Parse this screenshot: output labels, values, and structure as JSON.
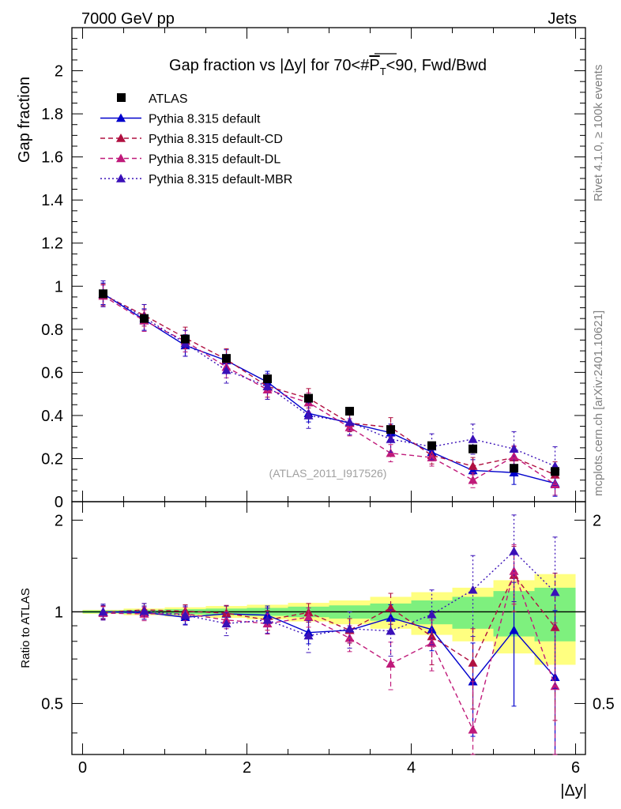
{
  "header": {
    "left": "7000 GeV pp",
    "right": "Jets"
  },
  "side_labels": {
    "rivet": "Rivet 4.1.0, ≥ 100k events",
    "mcplots": "mcplots.cern.ch [arXiv:2401.10621]"
  },
  "chart_data": [
    {
      "type": "scatter",
      "panel": "main",
      "title": "Gap fraction vs |Δy| for 70<#P̅T<90, Fwd/Bwd",
      "title_parts": {
        "pre": "Gap fraction vs |Δy| for 70<#",
        "P": "P",
        "T": "T",
        "post": "<90, Fwd/Bwd"
      },
      "ylabel": "Gap fraction",
      "xlim": [
        -0.13,
        6.12
      ],
      "ylim": [
        0,
        2.2
      ],
      "yticks": [
        0,
        0.2,
        0.4,
        0.6,
        0.8,
        1,
        1.2,
        1.4,
        1.6,
        1.8,
        2
      ],
      "ytick_labels": [
        "0",
        "0.2",
        "0.4",
        "0.6",
        "0.8",
        "1",
        "1.2",
        "1.4",
        "1.6",
        "1.8",
        "2"
      ],
      "watermark": "(ATLAS_2011_I917526)",
      "x": [
        0.25,
        0.75,
        1.25,
        1.75,
        2.25,
        2.75,
        3.25,
        3.75,
        4.25,
        4.75,
        5.25,
        5.75
      ],
      "series": [
        {
          "name": "ATLAS",
          "color": "#000000",
          "marker": "square",
          "line": "none",
          "values": [
            0.965,
            0.85,
            0.755,
            0.665,
            0.57,
            0.48,
            0.42,
            0.335,
            0.26,
            0.245,
            0.155,
            0.14
          ],
          "errors": [
            0.01,
            0.01,
            0.01,
            0.01,
            0.01,
            0.01,
            0.01,
            0.01,
            0.01,
            0.01,
            0.01,
            0.01
          ]
        },
        {
          "name": "Pythia 8.315 default",
          "color": "#0000cc",
          "marker": "triangle",
          "line": "solid",
          "values": [
            0.965,
            0.845,
            0.725,
            0.655,
            0.555,
            0.41,
            0.365,
            0.32,
            0.23,
            0.145,
            0.135,
            0.085
          ],
          "errors": [
            0.05,
            0.05,
            0.05,
            0.05,
            0.05,
            0.04,
            0.04,
            0.04,
            0.04,
            0.05,
            0.055,
            0.06
          ]
        },
        {
          "name": "Pythia 8.315 default-CD",
          "color": "#b01040",
          "marker": "triangle",
          "line": "dashed",
          "values": [
            0.96,
            0.865,
            0.76,
            0.66,
            0.535,
            0.48,
            0.365,
            0.345,
            0.215,
            0.165,
            0.205,
            0.125
          ],
          "errors": [
            0.05,
            0.05,
            0.05,
            0.05,
            0.05,
            0.045,
            0.04,
            0.045,
            0.04,
            0.04,
            0.05,
            0.06
          ]
        },
        {
          "name": "Pythia 8.315 default-DL",
          "color": "#c01a7a",
          "marker": "triangle",
          "line": "dashed",
          "values": [
            0.955,
            0.84,
            0.745,
            0.625,
            0.52,
            0.46,
            0.345,
            0.225,
            0.205,
            0.1,
            0.21,
            0.08
          ],
          "errors": [
            0.05,
            0.05,
            0.05,
            0.05,
            0.045,
            0.045,
            0.04,
            0.04,
            0.04,
            0.035,
            0.05,
            0.05
          ]
        },
        {
          "name": "Pythia 8.315 default-MBR",
          "color": "#3a10b8",
          "marker": "triangle",
          "line": "dotted",
          "values": [
            0.965,
            0.855,
            0.735,
            0.61,
            0.535,
            0.4,
            0.37,
            0.29,
            0.255,
            0.29,
            0.245,
            0.165
          ],
          "errors": [
            0.06,
            0.06,
            0.06,
            0.06,
            0.06,
            0.06,
            0.06,
            0.06,
            0.06,
            0.07,
            0.08,
            0.09
          ]
        }
      ]
    },
    {
      "type": "scatter",
      "panel": "ratio",
      "ylabel": "Ratio to ATLAS",
      "xlabel": "|Δy|",
      "xlim": [
        -0.13,
        6.12
      ],
      "ylim": [
        0.34,
        2.3
      ],
      "xticks": [
        0,
        2,
        4,
        6
      ],
      "xtick_labels": [
        "0",
        "2",
        "4",
        "6"
      ],
      "yticks": [
        0.5,
        1,
        2
      ],
      "ytick_labels": [
        "0.5",
        "1",
        "2"
      ],
      "bin_edges": [
        0,
        0.5,
        1,
        1.5,
        2,
        2.5,
        3,
        3.5,
        4,
        4.5,
        5,
        5.5,
        6
      ],
      "band_green_halfwidth": [
        0.01,
        0.015,
        0.02,
        0.025,
        0.03,
        0.04,
        0.05,
        0.065,
        0.09,
        0.12,
        0.17,
        0.2
      ],
      "band_yellow_halfwidth": [
        0.015,
        0.025,
        0.035,
        0.045,
        0.055,
        0.07,
        0.09,
        0.12,
        0.16,
        0.2,
        0.27,
        0.33
      ],
      "band_colors": {
        "green": "#7ef07e",
        "yellow": "#ffff80"
      },
      "x": [
        0.25,
        0.75,
        1.25,
        1.75,
        2.25,
        2.75,
        3.25,
        3.75,
        4.25,
        4.75,
        5.25,
        5.75
      ],
      "series": [
        {
          "name": "Pythia 8.315 default",
          "color": "#0000cc",
          "line": "solid",
          "values": [
            1.0,
            0.995,
            0.96,
            0.985,
            0.975,
            0.855,
            0.87,
            0.955,
            0.875,
            0.59,
            0.87,
            0.61
          ],
          "errors": [
            0.05,
            0.05,
            0.05,
            0.06,
            0.07,
            0.07,
            0.08,
            0.1,
            0.13,
            0.2,
            0.38,
            0.4
          ]
        },
        {
          "name": "Pythia 8.315 default-CD",
          "color": "#b01040",
          "line": "dashed",
          "values": [
            0.995,
            1.015,
            1.005,
            0.99,
            0.94,
            0.995,
            0.87,
            1.03,
            0.83,
            0.68,
            1.32,
            0.89
          ],
          "errors": [
            0.05,
            0.05,
            0.05,
            0.06,
            0.07,
            0.07,
            0.08,
            0.12,
            0.16,
            0.2,
            0.32,
            0.45
          ]
        },
        {
          "name": "Pythia 8.315 default-DL",
          "color": "#c01a7a",
          "line": "dashed",
          "values": [
            0.99,
            0.985,
            0.985,
            0.94,
            0.915,
            0.96,
            0.82,
            0.675,
            0.79,
            0.41,
            1.36,
            0.57
          ],
          "errors": [
            0.05,
            0.05,
            0.05,
            0.06,
            0.07,
            0.07,
            0.08,
            0.12,
            0.15,
            0.18,
            0.3,
            0.35
          ]
        },
        {
          "name": "Pythia 8.315 default-MBR",
          "color": "#3a10b8",
          "line": "dotted",
          "values": [
            1.0,
            1.005,
            0.975,
            0.915,
            0.94,
            0.835,
            0.88,
            0.865,
            0.98,
            1.18,
            1.58,
            1.16
          ],
          "errors": [
            0.06,
            0.06,
            0.07,
            0.08,
            0.09,
            0.1,
            0.12,
            0.15,
            0.2,
            0.35,
            0.5,
            0.6
          ]
        }
      ]
    }
  ]
}
